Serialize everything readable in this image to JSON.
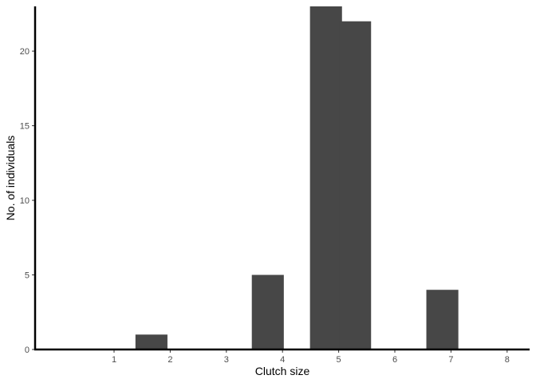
{
  "chart_data": {
    "type": "bar",
    "title": "",
    "xlabel": "Clutch size",
    "ylabel": "No. of individuals",
    "ylim": [
      0,
      23
    ],
    "xlim": [
      0,
      8.5
    ],
    "x_ticks": [
      "1",
      "2",
      "3",
      "4",
      "5",
      "6",
      "7",
      "8"
    ],
    "y_ticks": [
      "0",
      "5",
      "10",
      "15",
      "20"
    ],
    "bins": [
      {
        "x": 2,
        "value": 1
      },
      {
        "x": 4,
        "value": 5
      },
      {
        "x": 5,
        "value": 23
      },
      {
        "x": 5.5,
        "value": 22
      },
      {
        "x": 7,
        "value": 4
      }
    ],
    "grid": false,
    "legend": "none",
    "bar_color": "#474747",
    "axis_color": "#000000"
  }
}
